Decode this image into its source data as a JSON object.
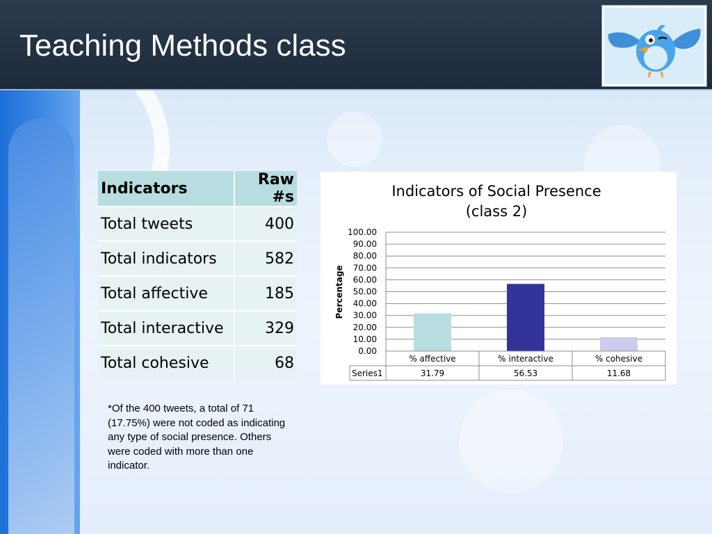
{
  "slide": {
    "title": "Teaching Methods class"
  },
  "logo": {
    "icon": "twitter-bird-icon"
  },
  "table": {
    "headers": [
      "Indicators",
      "Raw #s"
    ],
    "rows": [
      [
        "Total tweets",
        "400"
      ],
      [
        "Total indicators",
        "582"
      ],
      [
        "Total affective",
        "185"
      ],
      [
        "Total interactive",
        "329"
      ],
      [
        "Total cohesive",
        "68"
      ]
    ]
  },
  "note": "*Of the 400 tweets, a total of 71 (17.75%) were not coded as indicating any type of social presence. Others were coded with more than one indicator.",
  "colors": {
    "header_bg": "#1d2a3a",
    "table_header": "#b7dde0",
    "table_cell": "#e6f2f4"
  },
  "chart_data": {
    "type": "bar",
    "title": "Indicators of Social Presence",
    "subtitle": "(class 2)",
    "ylabel": "Percentage",
    "xlabel": "",
    "ylim": [
      0,
      100
    ],
    "y_ticks": [
      "0.00",
      "10.00",
      "20.00",
      "30.00",
      "40.00",
      "50.00",
      "60.00",
      "70.00",
      "80.00",
      "90.00",
      "100.00"
    ],
    "categories": [
      "% affective",
      "% interactive",
      "% cohesive"
    ],
    "series": [
      {
        "name": "Series1",
        "values": [
          31.79,
          56.53,
          11.68
        ]
      }
    ],
    "value_labels": [
      "31.79",
      "56.53",
      "11.68"
    ],
    "bar_colors": [
      "#b7dde0",
      "#333399",
      "#ccccee"
    ],
    "grid": true,
    "data_table": true
  }
}
